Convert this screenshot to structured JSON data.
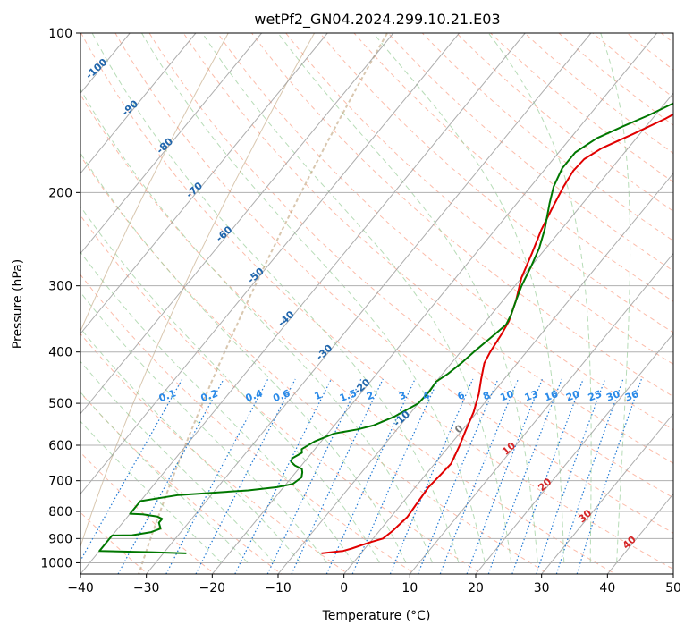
{
  "chart_data": {
    "type": "line",
    "title": "wetPf2_GN04.2024.299.10.21.E03",
    "xlabel": "Temperature (°C)",
    "ylabel": "Pressure (hPa)",
    "xlim": [
      -40,
      50
    ],
    "ylim": [
      1050,
      100
    ],
    "y_scale": "log",
    "x_ticks": [
      "−40",
      "−30",
      "−20",
      "−10",
      "0",
      "10",
      "20",
      "30",
      "40",
      "50"
    ],
    "y_ticks": [
      {
        "p": 100,
        "label": "100"
      },
      {
        "p": 200,
        "label": "200"
      },
      {
        "p": 300,
        "label": "300"
      },
      {
        "p": 400,
        "label": "400"
      },
      {
        "p": 500,
        "label": "500"
      },
      {
        "p": 600,
        "label": "600"
      },
      {
        "p": 700,
        "label": "700"
      },
      {
        "p": 800,
        "label": "800"
      },
      {
        "p": 900,
        "label": "900"
      },
      {
        "p": 1000,
        "label": "1000"
      }
    ],
    "grid": true,
    "series": [
      {
        "color": "#e00000",
        "points": [
          [
            -6,
            960
          ],
          [
            -3,
            950
          ],
          [
            -2,
            940
          ],
          [
            0,
            915
          ],
          [
            1.5,
            900
          ],
          [
            2,
            870
          ],
          [
            2.5,
            820
          ],
          [
            2.3,
            780
          ],
          [
            2,
            720
          ],
          [
            2.3,
            680
          ],
          [
            2.5,
            650
          ],
          [
            1.5,
            600
          ],
          [
            0.5,
            560
          ],
          [
            -0.5,
            520
          ],
          [
            -2,
            480
          ],
          [
            -3.5,
            450
          ],
          [
            -5,
            420
          ],
          [
            -5.5,
            400
          ],
          [
            -6,
            370
          ],
          [
            -6.5,
            350
          ],
          [
            -8,
            320
          ],
          [
            -10,
            290
          ],
          [
            -11.5,
            260
          ],
          [
            -13,
            235
          ],
          [
            -14,
            215
          ],
          [
            -15,
            195
          ],
          [
            -15.5,
            182
          ],
          [
            -15.3,
            173
          ],
          [
            -14,
            165
          ],
          [
            -11,
            155
          ],
          [
            -8,
            145
          ],
          [
            -5.5,
            135
          ],
          [
            -5,
            128
          ],
          [
            -4.8,
            123
          ],
          [
            -3.8,
            115
          ],
          [
            -2.2,
            108
          ],
          [
            -1,
            100
          ]
        ]
      },
      {
        "color": "#007700",
        "points": [
          [
            -26.5,
            960
          ],
          [
            -32,
            955
          ],
          [
            -40,
            950
          ],
          [
            -40,
            888
          ],
          [
            -37,
            887
          ],
          [
            -34.5,
            875
          ],
          [
            -33.5,
            862
          ],
          [
            -34.5,
            840
          ],
          [
            -34.5,
            826
          ],
          [
            -35.5,
            818
          ],
          [
            -38,
            810
          ],
          [
            -40,
            808
          ],
          [
            -40,
            765
          ],
          [
            -35,
            745
          ],
          [
            -25,
            730
          ],
          [
            -21,
            720
          ],
          [
            -19,
            710
          ],
          [
            -18.5,
            690
          ],
          [
            -19,
            675
          ],
          [
            -19.5,
            665
          ],
          [
            -21,
            655
          ],
          [
            -22,
            645
          ],
          [
            -22.3,
            635
          ],
          [
            -21.5,
            620
          ],
          [
            -22,
            610
          ],
          [
            -21,
            590
          ],
          [
            -19,
            570
          ],
          [
            -16,
            560
          ],
          [
            -14,
            550
          ],
          [
            -12,
            530
          ],
          [
            -10,
            500
          ],
          [
            -9.8,
            475
          ],
          [
            -10,
            455
          ],
          [
            -9.2,
            440
          ],
          [
            -8.5,
            420
          ],
          [
            -8,
            400
          ],
          [
            -7,
            370
          ],
          [
            -6.5,
            355
          ],
          [
            -7,
            340
          ],
          [
            -8,
            320
          ],
          [
            -9,
            300
          ],
          [
            -10,
            275
          ],
          [
            -11,
            255
          ],
          [
            -12.5,
            235
          ],
          [
            -15,
            210
          ],
          [
            -16.5,
            195
          ],
          [
            -17.5,
            180
          ],
          [
            -17.5,
            168
          ],
          [
            -16,
            158
          ],
          [
            -13.5,
            150
          ],
          [
            -11,
            143
          ],
          [
            -8.5,
            135
          ],
          [
            -6.5,
            127
          ],
          [
            -5,
            120
          ],
          [
            -3,
            110
          ],
          [
            -1.5,
            102
          ],
          [
            -1,
            100
          ]
        ]
      }
    ],
    "dry_adiabat_color": "#fa8564",
    "isotherm_color": "#999999",
    "moist_adiabat_color": "#9fd09f",
    "mixing_ratio_color": "#1f78d4",
    "height_color": "#b38f60",
    "mixing_ratio_labels": [
      "0.1",
      "0.2",
      "0.4",
      "0.6",
      "1",
      "1.5",
      "2",
      "3",
      "4",
      "6",
      "8",
      "10",
      "13",
      "16",
      "20",
      "25",
      "30",
      "36"
    ],
    "mixing_ratio_values": [
      0.1,
      0.2,
      0.4,
      0.6,
      1,
      1.5,
      2,
      3,
      4,
      6,
      8,
      10,
      13,
      16,
      20,
      25,
      30,
      36
    ],
    "isotherm_labels_blue": [
      "-100",
      "-90",
      "-80",
      "-70",
      "-60",
      "-50",
      "-40",
      "-30",
      "-20",
      "-10"
    ],
    "isotherm_labels_red": [
      "10",
      "20",
      "30",
      "40"
    ],
    "isotherm_label_zero": "0"
  }
}
